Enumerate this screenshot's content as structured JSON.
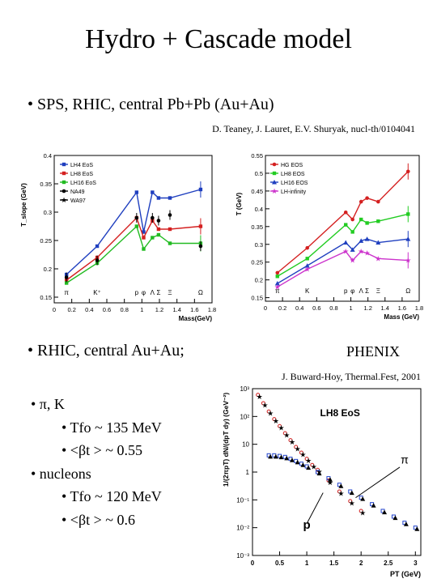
{
  "title": "Hydro + Cascade model",
  "bullet1": "•  SPS, RHIC, central Pb+Pb (Au+Au)",
  "ref1": "D. Teaney, J. Lauret, E.V. Shuryak, nucl-th/0104041",
  "bullet2": "•  RHIC, central Au+Au;",
  "phenix": "PHENIX",
  "ref2": "J. Buward-Hoy, Thermal.Fest, 2001",
  "list": {
    "pik": "•  π, K",
    "pik_t": "•  Tfo ~ 135 MeV",
    "pik_b": "•  <βt > ~ 0.55",
    "nuc": "•  nucleons",
    "nuc_t": "•  Tfo ~ 120 MeV",
    "nuc_b": "•  <βt > ~  0.6"
  },
  "chart_data": [
    {
      "type": "line",
      "ylabel": "T_slope (GeV)",
      "xlabel": "Mass(GeV)",
      "xlim": [
        0,
        1.8
      ],
      "ylim": [
        0.14,
        0.4
      ],
      "xticks": [
        0,
        0.2,
        0.4,
        0.6,
        0.8,
        1,
        1.2,
        1.4,
        1.6,
        1.8
      ],
      "yticks": [
        0.15,
        0.2,
        0.25,
        0.3,
        0.35,
        0.4
      ],
      "particles": [
        {
          "label": "π",
          "x": 0.14
        },
        {
          "label": "K⁺",
          "x": 0.49
        },
        {
          "label": "p",
          "x": 0.94
        },
        {
          "label": "φ",
          "x": 1.02
        },
        {
          "label": "Λ",
          "x": 1.12
        },
        {
          "label": "Σ",
          "x": 1.19
        },
        {
          "label": "Ξ",
          "x": 1.32
        },
        {
          "label": "Ω",
          "x": 1.67
        }
      ],
      "legend": [
        "LH4 EoS",
        "LH8 EoS",
        "LH16 EoS",
        "NA49",
        "WA97"
      ],
      "series": [
        {
          "name": "LH4 EoS",
          "color": "#1f3fbf",
          "x": [
            0.14,
            0.49,
            0.94,
            1.02,
            1.12,
            1.19,
            1.32,
            1.67
          ],
          "y": [
            0.19,
            0.24,
            0.335,
            0.265,
            0.335,
            0.325,
            0.325,
            0.34
          ]
        },
        {
          "name": "LH8 EoS",
          "color": "#d42020",
          "x": [
            0.14,
            0.49,
            0.94,
            1.02,
            1.12,
            1.19,
            1.32,
            1.67
          ],
          "y": [
            0.18,
            0.22,
            0.29,
            0.255,
            0.285,
            0.27,
            0.27,
            0.275
          ]
        },
        {
          "name": "LH16 EoS",
          "color": "#22bb22",
          "x": [
            0.14,
            0.49,
            0.94,
            1.02,
            1.12,
            1.19,
            1.32,
            1.67
          ],
          "y": [
            0.175,
            0.21,
            0.275,
            0.235,
            0.255,
            0.26,
            0.245,
            0.245
          ]
        }
      ],
      "data_points": [
        {
          "x": 0.14,
          "y": 0.185
        },
        {
          "x": 0.49,
          "y": 0.215
        },
        {
          "x": 0.94,
          "y": 0.29
        },
        {
          "x": 1.12,
          "y": 0.29
        },
        {
          "x": 1.19,
          "y": 0.285
        },
        {
          "x": 1.32,
          "y": 0.295
        },
        {
          "x": 1.67,
          "y": 0.24
        }
      ]
    },
    {
      "type": "line",
      "ylabel": "T (GeV)",
      "xlabel": "Mass (GeV)",
      "xlim": [
        0,
        1.8
      ],
      "ylim": [
        0.14,
        0.55
      ],
      "xticks": [
        0,
        0.2,
        0.4,
        0.6,
        0.8,
        1,
        1.2,
        1.4,
        1.6,
        1.8
      ],
      "yticks": [
        0.15,
        0.2,
        0.25,
        0.3,
        0.35,
        0.4,
        0.45,
        0.5,
        0.55
      ],
      "particles": [
        {
          "label": "π",
          "x": 0.14
        },
        {
          "label": "K",
          "x": 0.49
        },
        {
          "label": "p",
          "x": 0.94
        },
        {
          "label": "φ",
          "x": 1.02
        },
        {
          "label": "Λ",
          "x": 1.12
        },
        {
          "label": "Σ",
          "x": 1.19
        },
        {
          "label": "Ξ",
          "x": 1.32
        },
        {
          "label": "Ω",
          "x": 1.67
        }
      ],
      "legend": [
        "HG EOS",
        "LH8 EOS",
        "LH16 EOS",
        "LH-infinity"
      ],
      "series": [
        {
          "name": "HG EOS",
          "color": "#d42020",
          "x": [
            0.14,
            0.49,
            0.94,
            1.02,
            1.12,
            1.19,
            1.32,
            1.67
          ],
          "y": [
            0.22,
            0.29,
            0.39,
            0.37,
            0.42,
            0.43,
            0.42,
            0.505
          ]
        },
        {
          "name": "LH8 EOS",
          "color": "#22cc22",
          "x": [
            0.14,
            0.49,
            0.94,
            1.02,
            1.12,
            1.19,
            1.32,
            1.67
          ],
          "y": [
            0.21,
            0.26,
            0.355,
            0.335,
            0.37,
            0.36,
            0.365,
            0.385
          ]
        },
        {
          "name": "LH16 EOS",
          "color": "#1f3fbf",
          "x": [
            0.14,
            0.49,
            0.94,
            1.02,
            1.12,
            1.19,
            1.32,
            1.67
          ],
          "y": [
            0.19,
            0.24,
            0.305,
            0.285,
            0.31,
            0.315,
            0.305,
            0.315
          ]
        },
        {
          "name": "LH-infinity",
          "color": "#cc33cc",
          "x": [
            0.14,
            0.49,
            0.94,
            1.02,
            1.12,
            1.19,
            1.32,
            1.67
          ],
          "y": [
            0.18,
            0.23,
            0.28,
            0.255,
            0.28,
            0.275,
            0.26,
            0.255
          ]
        }
      ]
    },
    {
      "type": "scatter",
      "title": "LH8 EoS",
      "ylabel": "1/(2πpT) dN/(dpT dy) (GeV⁻²)",
      "xlabel": "PT (GeV)",
      "xlim": [
        0,
        3.1
      ],
      "ylog": true,
      "ylim": [
        0.001,
        1000
      ],
      "xticks": [
        0,
        0.5,
        1,
        1.5,
        2,
        2.5,
        3
      ],
      "ytick_labels": [
        "10⁻³",
        "10⁻²",
        "10⁻¹",
        "1",
        "10",
        "10²",
        "10³"
      ],
      "annotations": [
        "π",
        "p"
      ],
      "series": [
        {
          "name": "π",
          "x": [
            0.1,
            0.2,
            0.3,
            0.4,
            0.5,
            0.6,
            0.7,
            0.8,
            0.9,
            1.0,
            1.1,
            1.2,
            1.4,
            1.6,
            1.8,
            2.0
          ],
          "y": [
            600,
            300,
            150,
            80,
            45,
            25,
            14,
            8,
            5,
            3,
            1.8,
            1.2,
            0.5,
            0.2,
            0.09,
            0.04
          ]
        },
        {
          "name": "p",
          "x": [
            0.3,
            0.4,
            0.5,
            0.6,
            0.7,
            0.8,
            0.9,
            1.0,
            1.2,
            1.4,
            1.6,
            1.8,
            2.0,
            2.2,
            2.4,
            2.6,
            2.8,
            3.0
          ],
          "y": [
            4,
            4,
            3.8,
            3.5,
            3,
            2.5,
            2,
            1.6,
            1,
            0.6,
            0.35,
            0.2,
            0.12,
            0.07,
            0.04,
            0.025,
            0.015,
            0.01
          ]
        }
      ]
    }
  ]
}
